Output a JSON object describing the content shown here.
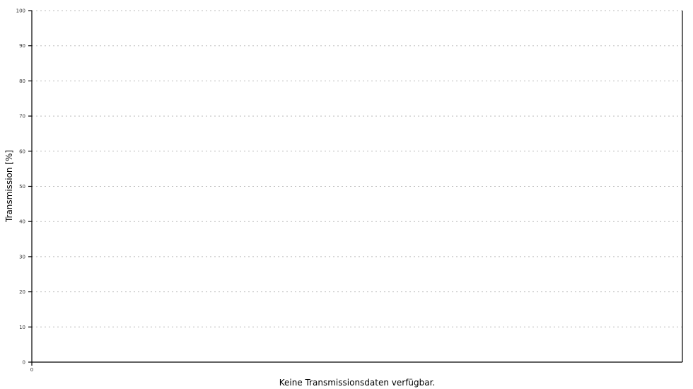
{
  "chart_data": {
    "type": "line",
    "title": "",
    "xlabel": "",
    "ylabel": "Transmission [%]",
    "ylim": [
      0,
      100
    ],
    "yticks": [
      0,
      10,
      20,
      30,
      40,
      50,
      60,
      70,
      80,
      90,
      100
    ],
    "xticks": [
      0
    ],
    "grid": "horizontal dashed",
    "series": [],
    "message": "Keine Transmissionsdaten verfügbar.",
    "colors": {
      "axis": "#000000",
      "grid": "#bbbbbb"
    }
  }
}
